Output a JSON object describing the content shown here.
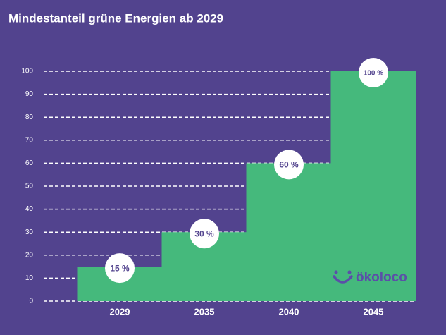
{
  "chart_data": {
    "type": "step-bar",
    "title": "Mindestanteil grüne Energien ab 2029",
    "categories": [
      "2029",
      "2035",
      "2040",
      "2045"
    ],
    "values": [
      15,
      30,
      60,
      100
    ],
    "value_labels": [
      "15 %",
      "30 %",
      "60 %",
      "100 %"
    ],
    "color": "#45b97c",
    "ylim": [
      0,
      100
    ],
    "yticks": [
      0,
      10,
      20,
      30,
      40,
      50,
      60,
      70,
      80,
      90,
      100
    ],
    "grid": true
  },
  "logo": "ökoloco"
}
